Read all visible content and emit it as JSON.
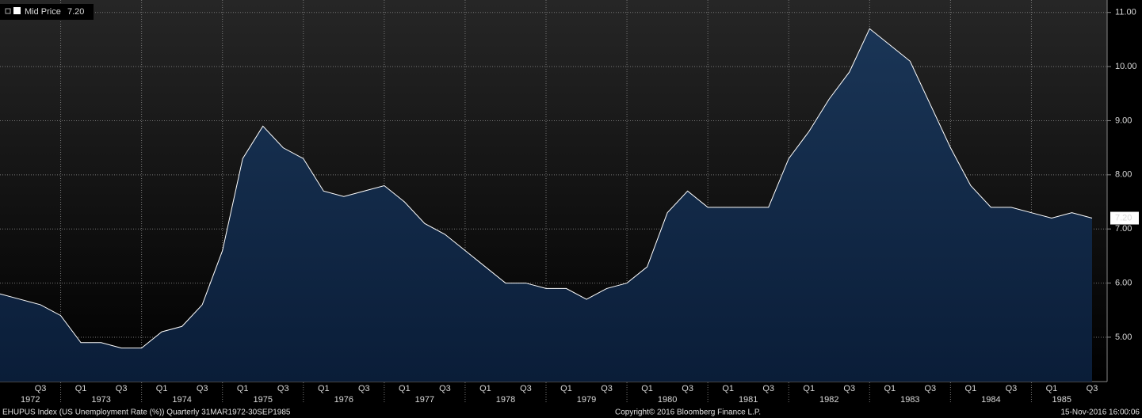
{
  "chart_data": {
    "type": "area",
    "series": [
      {
        "name": "Mid Price",
        "color": "#ffffff",
        "last_value_label": "7.20",
        "values": [
          5.8,
          5.7,
          5.6,
          5.4,
          4.9,
          4.9,
          4.8,
          4.8,
          5.1,
          5.2,
          5.6,
          6.6,
          8.3,
          8.9,
          8.5,
          8.3,
          7.7,
          7.6,
          7.7,
          7.8,
          7.5,
          7.1,
          6.9,
          6.6,
          6.3,
          6.0,
          6.0,
          5.9,
          5.9,
          5.7,
          5.9,
          6.0,
          6.3,
          7.3,
          7.7,
          7.4,
          7.4,
          7.4,
          7.4,
          8.3,
          8.8,
          9.4,
          9.9,
          10.7,
          10.4,
          10.1,
          9.3,
          8.5,
          7.8,
          7.4,
          7.4,
          7.3,
          7.2,
          7.3,
          7.2
        ]
      }
    ],
    "categories": [
      null,
      null,
      "Q3",
      null,
      "Q1",
      null,
      "Q3",
      null,
      "Q1",
      null,
      "Q3",
      null,
      "Q1",
      null,
      "Q3",
      null,
      "Q1",
      null,
      "Q3",
      null,
      "Q1",
      null,
      "Q3",
      null,
      "Q1",
      null,
      "Q3",
      null,
      "Q1",
      null,
      "Q3",
      null,
      "Q1",
      null,
      "Q3",
      null,
      "Q1",
      null,
      "Q3",
      null,
      "Q1",
      null,
      "Q3",
      null,
      "Q1",
      null,
      "Q3",
      null,
      "Q1",
      null,
      "Q3",
      null,
      "Q1",
      null,
      "Q3"
    ],
    "year_labels": [
      "1972",
      "1973",
      "1974",
      "1975",
      "1976",
      "1977",
      "1978",
      "1979",
      "1980",
      "1981",
      "1982",
      "1983",
      "1984",
      "1985"
    ],
    "ylim": [
      4.18,
      11.23
    ],
    "yticks": [
      {
        "value": 5,
        "label": "5.00"
      },
      {
        "value": 6,
        "label": "6.00"
      },
      {
        "value": 7,
        "label": "7.00"
      },
      {
        "value": 8,
        "label": "8.00"
      },
      {
        "value": 9,
        "label": "9.00"
      },
      {
        "value": 10,
        "label": "10.00"
      },
      {
        "value": 11,
        "label": "11.00"
      }
    ],
    "grid": true,
    "footer": {
      "security": "EHUPUS Index (US Unemployment Rate (%))  Quarterly 31MAR1972-30SEP1985",
      "copyright": "Copyright© 2016 Bloomberg Finance L.P.",
      "timestamp": "15-Nov-2016 16:00:06"
    }
  }
}
